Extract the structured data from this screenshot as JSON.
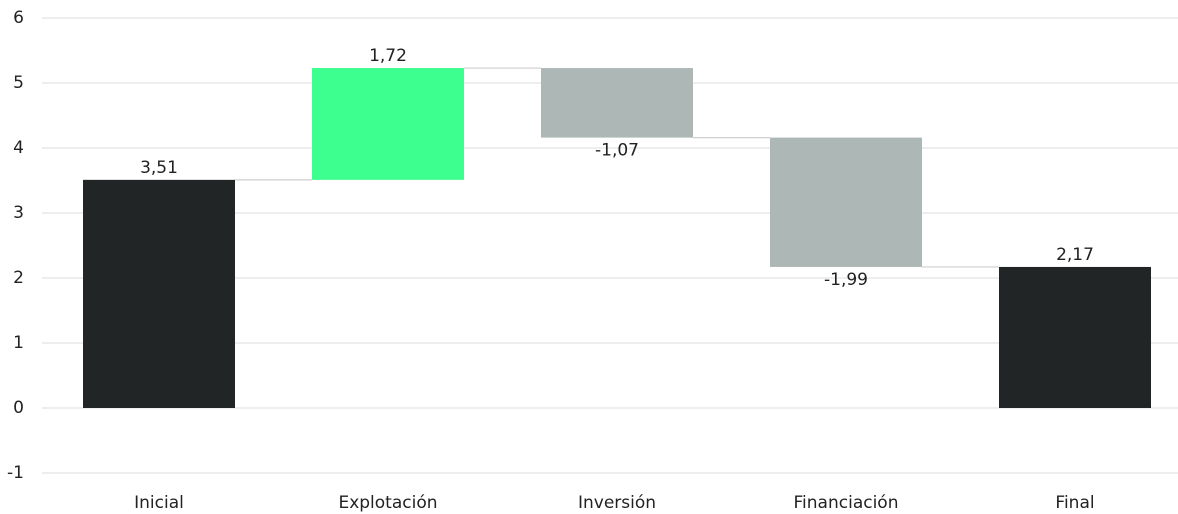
{
  "chart_data": {
    "type": "waterfall",
    "categories": [
      "Inicial",
      "Explotación",
      "Inversión",
      "Financiación",
      "Final"
    ],
    "values": [
      3.51,
      1.72,
      -1.07,
      -1.99,
      2.17
    ],
    "value_labels": [
      "3,51",
      "1,72",
      "-1,07",
      "-1,99",
      "2,17"
    ],
    "is_total": [
      true,
      false,
      false,
      false,
      true
    ],
    "total_color": "#222526",
    "increase_color": "#3dff8f",
    "decrease_color": "#adb8b6",
    "ylim": [
      -1,
      6
    ],
    "yticks": [
      -1,
      0,
      1,
      2,
      3,
      4,
      5,
      6
    ],
    "grid": true
  }
}
